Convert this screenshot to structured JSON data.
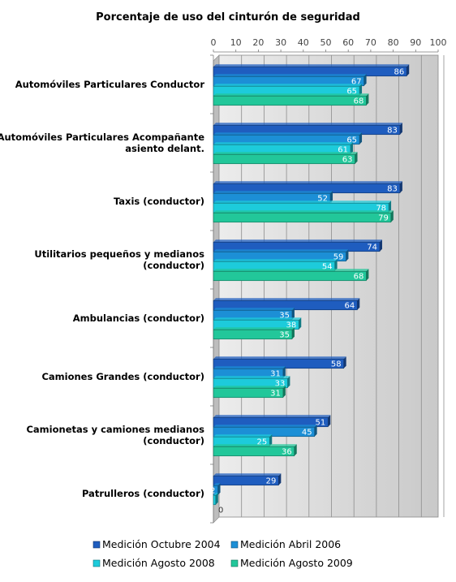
{
  "chart_data": {
    "type": "bar",
    "orientation": "horizontal",
    "title": "Porcentaje de uso del cinturón de seguridad",
    "xlim": [
      0,
      100
    ],
    "xticks": [
      0,
      10,
      20,
      30,
      40,
      50,
      60,
      70,
      80,
      90,
      100
    ],
    "axis_position": "top",
    "grid": true,
    "legend_position": "bottom",
    "categories": [
      [
        "Automóviles Particulares Conductor"
      ],
      [
        "Automóviles Particulares Acompañante",
        "asiento delant."
      ],
      [
        "Taxis (conductor)"
      ],
      [
        "Utilitarios pequeños y medianos",
        "(conductor)"
      ],
      [
        "Ambulancias (conductor)"
      ],
      [
        "Camiones Grandes (conductor)"
      ],
      [
        "Camionetas y camiones medianos",
        "(conductor)"
      ],
      [
        "Patrulleros (conductor)"
      ]
    ],
    "series": [
      {
        "name": "Medición Octubre 2004",
        "color": "#1F5DBF",
        "values": [
          86,
          83,
          83,
          74,
          64,
          58,
          51,
          29
        ]
      },
      {
        "name": "Medición Abril 2006",
        "color": "#1C8FD6",
        "values": [
          67,
          65,
          52,
          59,
          35,
          31,
          45,
          2
        ]
      },
      {
        "name": "Medición Agosto 2008",
        "color": "#1DCBDB",
        "values": [
          65,
          61,
          78,
          54,
          38,
          33,
          25,
          1
        ]
      },
      {
        "name": "Medición Agosto 2009",
        "color": "#22C79A",
        "values": [
          68,
          63,
          79,
          68,
          35,
          31,
          36,
          0
        ]
      }
    ]
  }
}
